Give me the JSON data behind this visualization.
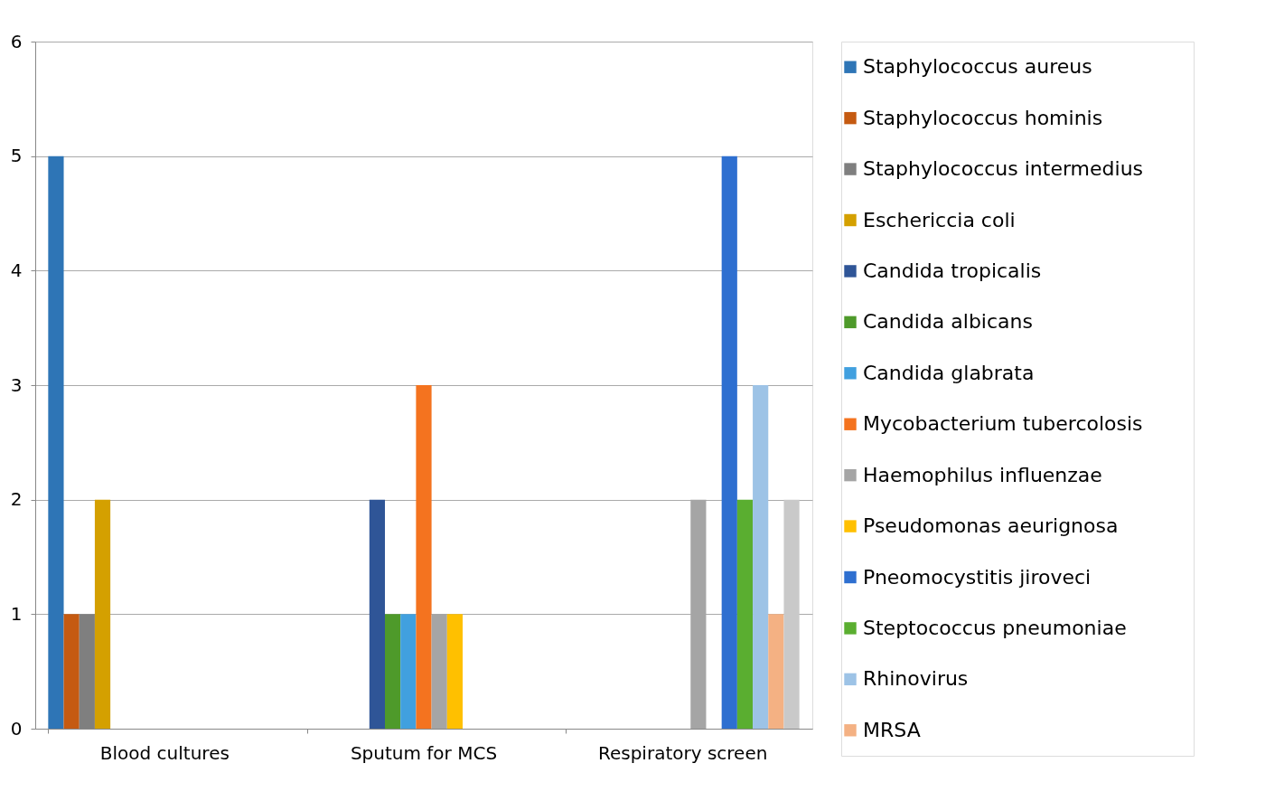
{
  "chart_data": {
    "type": "bar",
    "categories": [
      "Blood cultures",
      "Sputum for MCS",
      "Respiratory screen"
    ],
    "ylim": [
      0,
      6
    ],
    "yticks": [
      0,
      1,
      2,
      3,
      4,
      5,
      6
    ],
    "grid": "y",
    "legend": "right",
    "series": [
      {
        "name": "Staphylococcus aureus",
        "color": "#2e75b6",
        "values": [
          5,
          0,
          0
        ]
      },
      {
        "name": "Staphylococcus hominis",
        "color": "#c55a11",
        "values": [
          1,
          0,
          0
        ]
      },
      {
        "name": "Staphylococcus intermedius",
        "color": "#7f7f7f",
        "values": [
          1,
          0,
          0
        ]
      },
      {
        "name": "Eschericcia coli",
        "color": "#d4a000",
        "values": [
          2,
          0,
          0
        ]
      },
      {
        "name": "Candida tropicalis",
        "color": "#2f5597",
        "values": [
          0,
          2,
          0
        ]
      },
      {
        "name": "Candida albicans",
        "color": "#4e9a2a",
        "values": [
          0,
          1,
          0
        ]
      },
      {
        "name": "Candida glabrata",
        "color": "#41a0df",
        "values": [
          0,
          1,
          0
        ]
      },
      {
        "name": "Mycobacterium tubercolosis",
        "color": "#f4731f",
        "values": [
          0,
          3,
          0
        ]
      },
      {
        "name": "Haemophilus influenzae",
        "color": "#a5a5a5",
        "values": [
          0,
          1,
          2
        ]
      },
      {
        "name": "Pseudomonas aeurignosa",
        "color": "#ffc000",
        "values": [
          0,
          1,
          0
        ]
      },
      {
        "name": "Pneomocystitis jiroveci",
        "color": "#2e6fd0",
        "values": [
          0,
          0,
          5
        ]
      },
      {
        "name": "Steptococcus pneumoniae",
        "color": "#5aae30",
        "values": [
          0,
          0,
          2
        ]
      },
      {
        "name": "Rhinovirus",
        "color": "#9dc3e6",
        "values": [
          0,
          0,
          3
        ]
      },
      {
        "name": "MRSA",
        "color": "#f4b183",
        "values": [
          0,
          0,
          1
        ]
      },
      {
        "color": "#c9c9c9",
        "values": [
          0,
          0,
          2
        ]
      }
    ]
  }
}
